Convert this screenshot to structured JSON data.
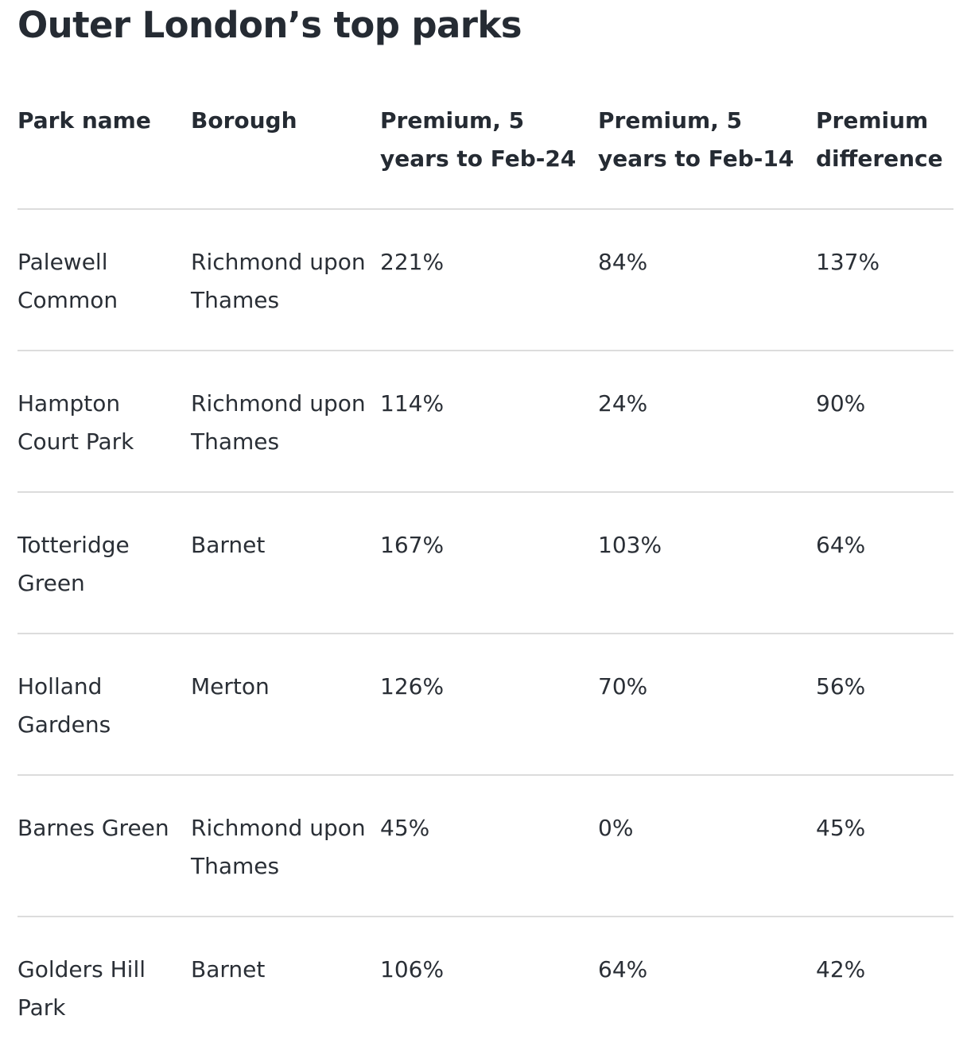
{
  "title": "Outer London’s top parks",
  "table": {
    "headers": [
      "Park name",
      "Borough",
      "Premium, 5 years to Feb-24",
      "Premium, 5 years to Feb-14",
      "Premium difference"
    ],
    "rows": [
      [
        "Palewell Common",
        "Richmond upon Thames",
        "221%",
        "84%",
        "137%"
      ],
      [
        "Hampton Court Park",
        "Richmond upon Thames",
        "114%",
        "24%",
        "90%"
      ],
      [
        "Totteridge Green",
        "Barnet",
        "167%",
        "103%",
        "64%"
      ],
      [
        "Holland Gardens",
        "Merton",
        "126%",
        "70%",
        "56%"
      ],
      [
        "Barnes Green",
        "Richmond upon Thames",
        "45%",
        "0%",
        "45%"
      ],
      [
        "Golders Hill Park",
        "Barnet",
        "106%",
        "64%",
        "42%"
      ]
    ]
  }
}
